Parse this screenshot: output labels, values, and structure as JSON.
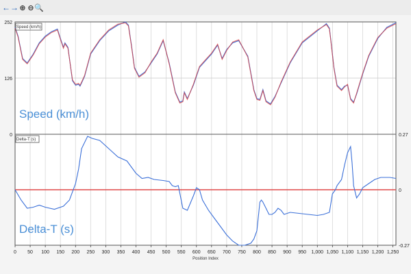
{
  "toolbar": {
    "buttons": [
      {
        "name": "back-arrow-icon",
        "glyph": "←"
      },
      {
        "name": "forward-arrow-icon",
        "glyph": "→"
      },
      {
        "name": "zoom-in-icon",
        "glyph": "⊕"
      },
      {
        "name": "zoom-out-icon",
        "glyph": "⊖"
      },
      {
        "name": "zoom-fit-icon",
        "glyph": "🔍"
      }
    ]
  },
  "colors": {
    "trace_blue": "#3a6fd8",
    "trace_red": "#d84040",
    "zero_line": "#e04848",
    "grid": "#d6d6d6",
    "title": "#4a8fd6"
  },
  "chart_data": [
    {
      "type": "line",
      "legend_label": "Speed (km/h)",
      "big_label": "Speed (km/h)",
      "ylim": [
        0,
        252
      ],
      "y_ticks": [
        "252",
        "126",
        "0"
      ],
      "xlim": [
        0,
        1260
      ],
      "series": [
        {
          "color": "blue",
          "x": [
            0,
            10,
            25,
            40,
            60,
            80,
            100,
            120,
            140,
            150,
            160,
            165,
            175,
            190,
            200,
            210,
            215,
            220,
            230,
            250,
            280,
            310,
            340,
            365,
            375,
            385,
            395,
            410,
            430,
            450,
            470,
            490,
            510,
            530,
            545,
            555,
            560,
            570,
            590,
            610,
            630,
            650,
            670,
            685,
            700,
            720,
            740,
            770,
            790,
            800,
            810,
            820,
            830,
            845,
            860,
            880,
            910,
            950,
            1000,
            1030,
            1040,
            1045,
            1055,
            1065,
            1080,
            1090,
            1100,
            1110,
            1120,
            1130,
            1150,
            1170,
            1200,
            1230,
            1260
          ],
          "y": [
            240,
            220,
            170,
            160,
            180,
            205,
            220,
            230,
            236,
            215,
            195,
            205,
            195,
            120,
            110,
            112,
            108,
            115,
            130,
            180,
            210,
            232,
            245,
            252,
            245,
            200,
            150,
            130,
            140,
            160,
            180,
            210,
            160,
            95,
            72,
            75,
            95,
            80,
            110,
            150,
            165,
            180,
            200,
            170,
            190,
            205,
            210,
            175,
            100,
            80,
            78,
            100,
            75,
            68,
            85,
            115,
            160,
            205,
            232,
            248,
            238,
            210,
            150,
            110,
            100,
            108,
            110,
            80,
            72,
            90,
            135,
            175,
            215,
            240,
            250
          ]
        },
        {
          "color": "red",
          "x": [
            0,
            10,
            25,
            40,
            60,
            80,
            100,
            120,
            140,
            150,
            160,
            165,
            175,
            190,
            200,
            210,
            215,
            220,
            230,
            250,
            280,
            310,
            340,
            365,
            375,
            385,
            395,
            410,
            430,
            450,
            470,
            490,
            510,
            530,
            545,
            555,
            560,
            570,
            590,
            610,
            630,
            650,
            670,
            685,
            700,
            720,
            740,
            770,
            790,
            800,
            810,
            820,
            830,
            845,
            860,
            880,
            910,
            950,
            1000,
            1030,
            1040,
            1045,
            1055,
            1065,
            1080,
            1090,
            1100,
            1110,
            1120,
            1130,
            1150,
            1170,
            1200,
            1230,
            1260
          ],
          "y": [
            238,
            218,
            168,
            158,
            178,
            203,
            218,
            228,
            234,
            213,
            193,
            203,
            193,
            122,
            112,
            114,
            110,
            117,
            132,
            182,
            212,
            234,
            247,
            250,
            243,
            198,
            148,
            128,
            138,
            162,
            182,
            212,
            158,
            93,
            70,
            73,
            93,
            78,
            112,
            152,
            167,
            182,
            202,
            168,
            188,
            207,
            212,
            173,
            98,
            78,
            76,
            98,
            73,
            66,
            83,
            117,
            162,
            207,
            234,
            246,
            236,
            208,
            148,
            108,
            98,
            106,
            112,
            78,
            70,
            92,
            137,
            177,
            217,
            238,
            248
          ]
        }
      ]
    },
    {
      "type": "line",
      "legend_label": "Delta-T (s)",
      "big_label": "Delta-T (s)",
      "ylim": [
        -0.27,
        0.27
      ],
      "y_ticks": [
        "0.27",
        "0",
        "-0.27"
      ],
      "xlim": [
        0,
        1260
      ],
      "xlabel": "Position Index",
      "x_ticks": [
        "0",
        "50",
        "100",
        "150",
        "200",
        "250",
        "300",
        "350",
        "400",
        "450",
        "500",
        "550",
        "600",
        "650",
        "700",
        "750",
        "800",
        "850",
        "900",
        "950",
        "1,000",
        "1,050",
        "1,100",
        "1,150",
        "1,200",
        "1,250"
      ],
      "x_tick_values": [
        0,
        50,
        100,
        150,
        200,
        250,
        300,
        350,
        400,
        450,
        500,
        550,
        600,
        650,
        700,
        750,
        800,
        850,
        900,
        950,
        1000,
        1050,
        1100,
        1150,
        1200,
        1250
      ],
      "series": [
        {
          "color": "blue",
          "x": [
            0,
            20,
            40,
            60,
            80,
            100,
            130,
            160,
            180,
            200,
            210,
            220,
            240,
            255,
            280,
            310,
            340,
            370,
            400,
            420,
            440,
            460,
            490,
            510,
            520,
            530,
            540,
            555,
            570,
            590,
            600,
            610,
            620,
            640,
            660,
            680,
            700,
            720,
            740,
            760,
            780,
            790,
            800,
            810,
            815,
            820,
            830,
            840,
            850,
            860,
            870,
            880,
            890,
            910,
            940,
            970,
            1000,
            1020,
            1040,
            1050,
            1055,
            1060,
            1065,
            1080,
            1090,
            1100,
            1110,
            1115,
            1120,
            1130,
            1140,
            1150,
            1170,
            1190,
            1210,
            1240,
            1260
          ],
          "y": [
            0.0,
            -0.05,
            -0.09,
            -0.085,
            -0.075,
            -0.085,
            -0.095,
            -0.08,
            -0.05,
            0.03,
            0.1,
            0.2,
            0.26,
            0.25,
            0.24,
            0.2,
            0.16,
            0.14,
            0.08,
            0.055,
            0.06,
            0.05,
            0.045,
            0.04,
            0.02,
            0.015,
            0.02,
            -0.09,
            -0.1,
            -0.03,
            0.01,
            0.0,
            -0.05,
            -0.1,
            -0.14,
            -0.18,
            -0.22,
            -0.25,
            -0.27,
            -0.27,
            -0.26,
            -0.24,
            -0.2,
            -0.06,
            -0.05,
            -0.06,
            -0.09,
            -0.12,
            -0.12,
            -0.11,
            -0.09,
            -0.1,
            -0.12,
            -0.11,
            -0.115,
            -0.12,
            -0.125,
            -0.12,
            -0.11,
            -0.02,
            -0.01,
            0.0,
            0.02,
            0.05,
            0.12,
            0.18,
            0.21,
            0.13,
            0.02,
            -0.04,
            -0.02,
            0.01,
            0.03,
            0.05,
            0.06,
            0.06,
            0.055
          ]
        }
      ]
    }
  ]
}
